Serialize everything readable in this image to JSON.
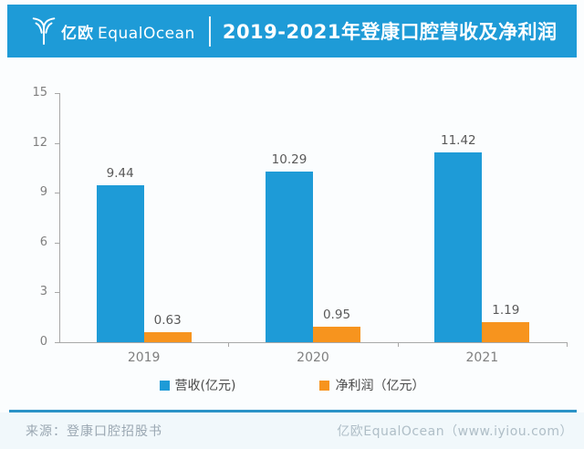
{
  "header": {
    "logo": {
      "brand_cn": "亿欧",
      "brand_en": "EqualOcean"
    },
    "title": "2019-2021年登康口腔营收及净利润"
  },
  "chart_data": {
    "type": "bar",
    "title": "2019-2021年登康口腔营收及净利润",
    "categories": [
      "2019",
      "2020",
      "2021"
    ],
    "series": [
      {
        "key": "revenue",
        "name": "营收(亿元)",
        "color": "#1E9BD7",
        "values": [
          9.44,
          10.29,
          11.42
        ]
      },
      {
        "key": "net-profit",
        "name": "净利润（亿元）",
        "color": "#F7941E",
        "values": [
          0.63,
          0.95,
          1.19
        ]
      }
    ],
    "xlabel": "",
    "ylabel": "",
    "ylim": [
      0,
      15
    ],
    "yticks": [
      0,
      3,
      6,
      9,
      12,
      15
    ],
    "grid": false,
    "legend_position": "bottom",
    "value_labels_shown": true
  },
  "footer": {
    "source": "来源：登康口腔招股书",
    "credit": "亿欧EqualOcean（www.iyiou.com）"
  },
  "colors": {
    "header_bg": "#1E9BD7",
    "revenue_bar": "#1E9BD7",
    "net_profit_bar": "#F7941E",
    "axis": "#A8A8A8",
    "footer_rule": "#2B93C7"
  }
}
